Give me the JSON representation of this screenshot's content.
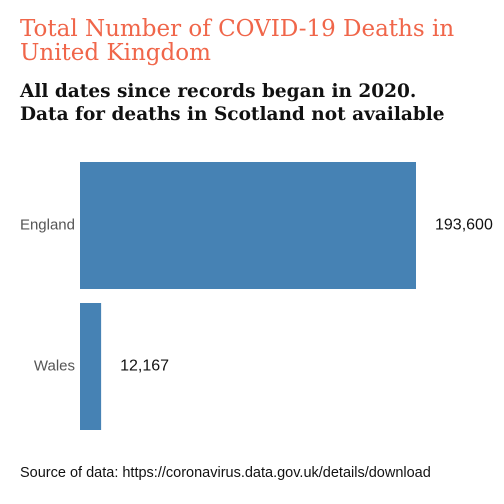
{
  "chart_data": {
    "type": "bar",
    "orientation": "horizontal",
    "title": [
      "Total Number of COVID-19 Deaths in",
      "United Kingdom"
    ],
    "subtitle": [
      "All dates since records began in 2020.",
      "Data for deaths in Scotland not available"
    ],
    "categories": [
      "England",
      "Wales"
    ],
    "values": [
      193600,
      12167
    ],
    "value_labels": [
      "193,600",
      "12,167"
    ],
    "color": "#4682b4",
    "caption": "Source of data: https://coronavirus.data.gov.uk/details/download"
  }
}
